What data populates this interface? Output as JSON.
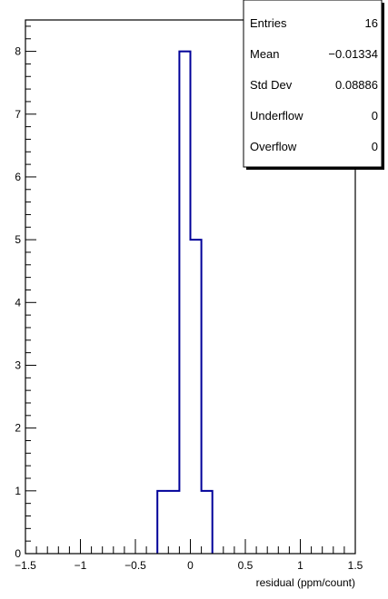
{
  "chart_data": {
    "type": "histogram",
    "title": "",
    "xlabel": "residual (ppm/count)",
    "ylabel": "",
    "xlim": [
      -1.5,
      1.5
    ],
    "ylim": [
      0,
      8.5
    ],
    "bin_width": 0.1,
    "bins": [
      {
        "low": -0.3,
        "high": -0.2,
        "count": 1
      },
      {
        "low": -0.2,
        "high": -0.1,
        "count": 1
      },
      {
        "low": -0.1,
        "high": 0.0,
        "count": 8
      },
      {
        "low": 0.0,
        "high": 0.1,
        "count": 5
      },
      {
        "low": 0.1,
        "high": 0.2,
        "count": 1
      }
    ],
    "x_tick_labels": [
      {
        "value": -1.5,
        "label": "−1.5"
      },
      {
        "value": -1.0,
        "label": "−1"
      },
      {
        "value": -0.5,
        "label": "−0.5"
      },
      {
        "value": 0.0,
        "label": "0"
      },
      {
        "value": 0.5,
        "label": "0.5"
      },
      {
        "value": 1.0,
        "label": "1"
      },
      {
        "value": 1.5,
        "label": "1.5"
      }
    ],
    "y_tick_labels": [
      {
        "value": 0,
        "label": "0"
      },
      {
        "value": 1,
        "label": "1"
      },
      {
        "value": 2,
        "label": "2"
      },
      {
        "value": 3,
        "label": "3"
      },
      {
        "value": 4,
        "label": "4"
      },
      {
        "value": 5,
        "label": "5"
      },
      {
        "value": 6,
        "label": "6"
      },
      {
        "value": 7,
        "label": "7"
      },
      {
        "value": 8,
        "label": "8"
      }
    ],
    "line_color": "#000099",
    "stats_box": [
      {
        "label": "Entries",
        "value": "16"
      },
      {
        "label": "Mean",
        "value": "−0.01334"
      },
      {
        "label": "Std Dev",
        "value": "0.08886"
      },
      {
        "label": "Underflow",
        "value": "0"
      },
      {
        "label": "Overflow",
        "value": "0"
      }
    ]
  }
}
